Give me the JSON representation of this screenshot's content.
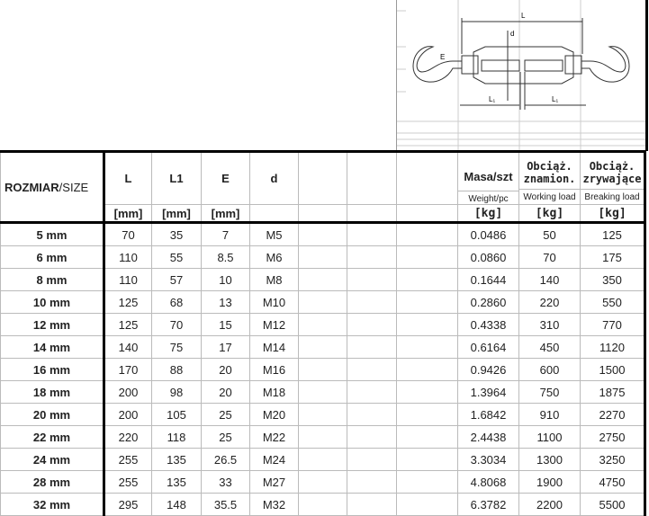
{
  "diagram": {
    "labels": {
      "L": "L",
      "L1": "L₁",
      "d": "d",
      "E": "E"
    }
  },
  "header": {
    "size": {
      "bold": "ROZMIAR",
      "normal": "/SIZE"
    },
    "columns": [
      {
        "label": "L",
        "unit": "[mm]"
      },
      {
        "label": "L1",
        "unit": "[mm]"
      },
      {
        "label": "E",
        "unit": "[mm]"
      },
      {
        "label": "d",
        "unit": ""
      }
    ],
    "mass": {
      "label": "Masa/szt",
      "sub": "Weight/pc",
      "unit": "[kg]"
    },
    "working": {
      "label1": "Obciąż.",
      "label2": "znamion.",
      "sub": "Working load",
      "unit": "[kg]"
    },
    "breaking": {
      "label1": "Obciąż.",
      "label2": "zrywające",
      "sub": "Breaking load",
      "unit": "[kg]"
    }
  },
  "rows": [
    [
      "5 mm",
      "70",
      "35",
      "7",
      "M5",
      "0.0486",
      "50",
      "125"
    ],
    [
      "6 mm",
      "110",
      "55",
      "8.5",
      "M6",
      "0.0860",
      "70",
      "175"
    ],
    [
      "8 mm",
      "110",
      "57",
      "10",
      "M8",
      "0.1644",
      "140",
      "350"
    ],
    [
      "10 mm",
      "125",
      "68",
      "13",
      "M10",
      "0.2860",
      "220",
      "550"
    ],
    [
      "12 mm",
      "125",
      "70",
      "15",
      "M12",
      "0.4338",
      "310",
      "770"
    ],
    [
      "14 mm",
      "140",
      "75",
      "17",
      "M14",
      "0.6164",
      "450",
      "1120"
    ],
    [
      "16 mm",
      "170",
      "88",
      "20",
      "M16",
      "0.9426",
      "600",
      "1500"
    ],
    [
      "18 mm",
      "200",
      "98",
      "20",
      "M18",
      "1.3964",
      "750",
      "1875"
    ],
    [
      "20 mm",
      "200",
      "105",
      "25",
      "M20",
      "1.6842",
      "910",
      "2270"
    ],
    [
      "22 mm",
      "220",
      "118",
      "25",
      "M22",
      "2.4438",
      "1100",
      "2750"
    ],
    [
      "24 mm",
      "255",
      "135",
      "26.5",
      "M24",
      "3.3034",
      "1300",
      "3250"
    ],
    [
      "28 mm",
      "255",
      "135",
      "33",
      "M27",
      "4.8068",
      "1900",
      "4750"
    ],
    [
      "32 mm",
      "295",
      "148",
      "35.5",
      "M32",
      "6.3782",
      "2200",
      "5500"
    ]
  ]
}
